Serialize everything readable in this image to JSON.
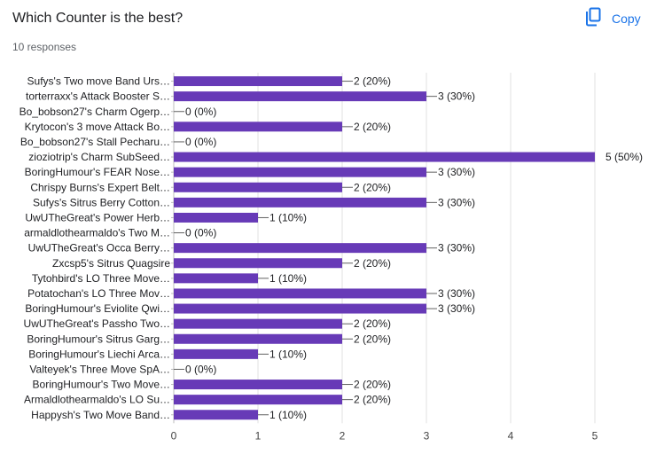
{
  "header": {
    "title": "Which Counter is the best?",
    "responses": "10 responses",
    "copy_label": "Copy",
    "copy_icon": "copy-icon"
  },
  "colors": {
    "bar": "#673ab7",
    "grid": "#e0e0e0",
    "accent": "#1a73e8"
  },
  "chart_data": {
    "type": "bar",
    "orientation": "horizontal",
    "title": "",
    "xlabel": "",
    "ylabel": "",
    "xlim": [
      0,
      5
    ],
    "ticks": [
      "0",
      "1",
      "2",
      "3",
      "4",
      "5"
    ],
    "grid": true,
    "categories": [
      "Sufys's Two move Band Urs…",
      "torterraxx's Attack Booster S…",
      "Bo_bobson27's Charm Ogerp…",
      "Krytocon's 3 move Attack Bo…",
      "Bo_bobson27's Stall Pecharu…",
      "zioziotrip's Charm SubSeed…",
      "BoringHumour's FEAR Nose…",
      "Chrispy Burns's Expert Belt…",
      "Sufys's Sitrus Berry Cotton…",
      "UwUTheGreat's Power Herb…",
      "armaldlothearmaldo's Two M…",
      "UwUTheGreat's Occa Berry…",
      "Zxcsp5's Sitrus Quagsire",
      "Tytohbird's LO Three Move…",
      "Potatochan's LO Three Mov…",
      "BoringHumour's Eviolite Qwi…",
      "UwUTheGreat's Passho Two…",
      "BoringHumour's Sitrus Garg…",
      "BoringHumour's Liechi Arca…",
      "Valteyek's Three Move SpA…",
      "BoringHumour's Two Move…",
      "Armaldlothearmaldo's LO Su…",
      "Happysh's Two Move Band…"
    ],
    "values": [
      2,
      3,
      0,
      2,
      0,
      5,
      3,
      2,
      3,
      1,
      0,
      3,
      2,
      1,
      3,
      3,
      2,
      2,
      1,
      0,
      2,
      2,
      1
    ],
    "labels": [
      "2 (20%)",
      "3 (30%)",
      "0 (0%)",
      "2 (20%)",
      "0 (0%)",
      "5 (50%)",
      "3 (30%)",
      "2 (20%)",
      "3 (30%)",
      "1 (10%)",
      "0 (0%)",
      "3 (30%)",
      "2 (20%)",
      "1 (10%)",
      "3 (30%)",
      "3 (30%)",
      "2 (20%)",
      "2 (20%)",
      "1 (10%)",
      "0 (0%)",
      "2 (20%)",
      "2 (20%)",
      "1 (10%)"
    ]
  }
}
